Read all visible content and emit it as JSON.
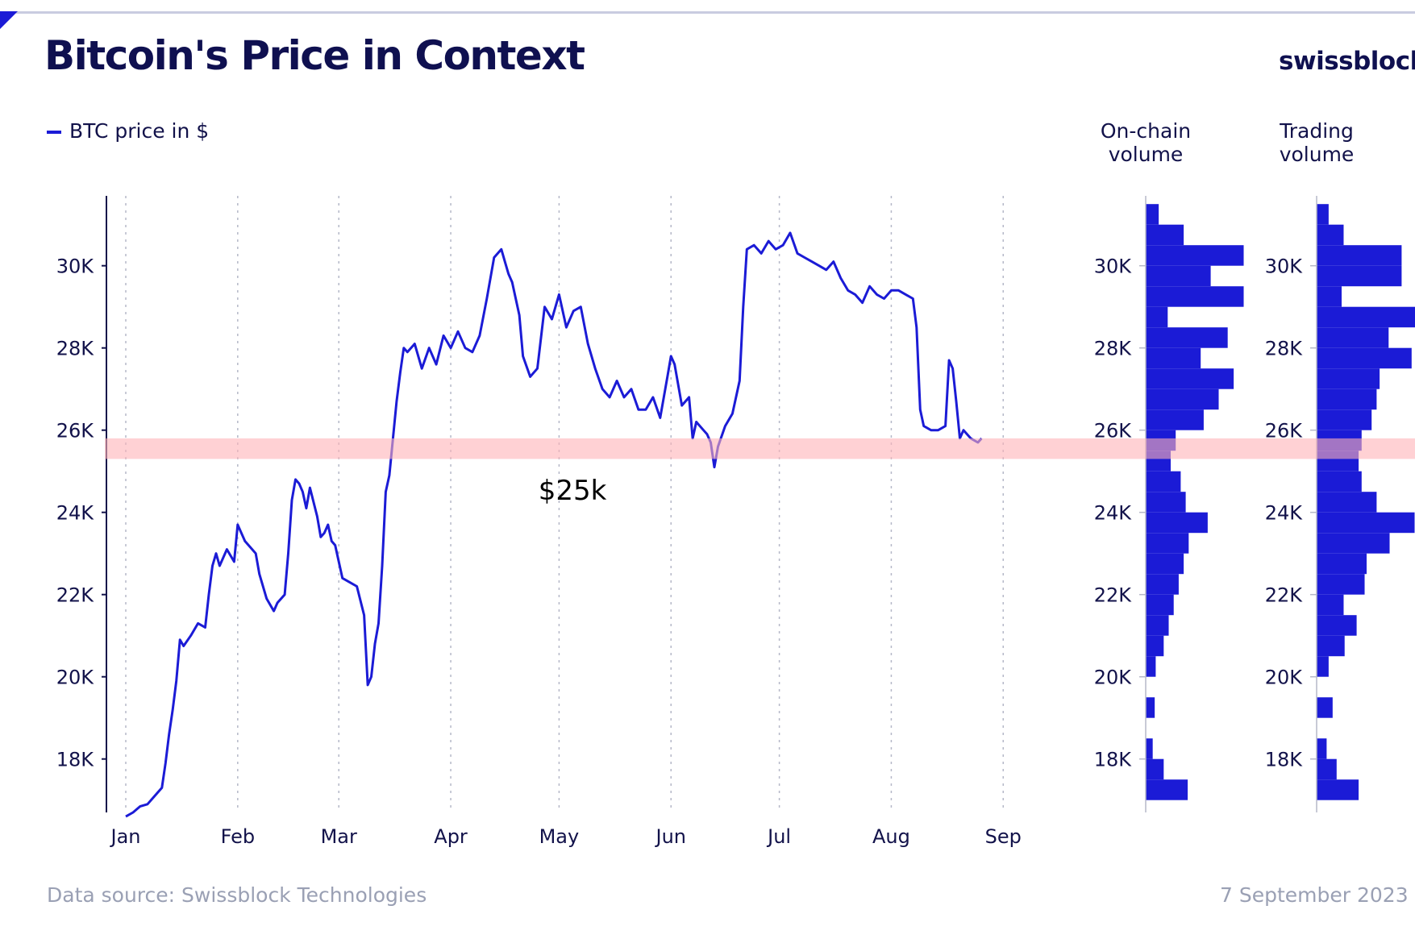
{
  "chart_data": {
    "type": "line",
    "title": "Bitcoin's Price in Context",
    "legend": "BTC price in $",
    "annotation": {
      "label": "$25k",
      "band": [
        25300,
        25800
      ],
      "color": "#ffb3b8"
    },
    "y_axis": {
      "lim": [
        16700,
        31700
      ],
      "ticks": [
        18000,
        20000,
        22000,
        24000,
        26000,
        28000,
        30000
      ],
      "tick_labels": [
        "18K",
        "20K",
        "22K",
        "24K",
        "26K",
        "28K",
        "30K"
      ]
    },
    "x_axis": {
      "day_range": [
        0,
        255
      ],
      "months": [
        "Jan",
        "Feb",
        "Mar",
        "Apr",
        "May",
        "Jun",
        "Jul",
        "Aug",
        "Sep"
      ],
      "month_days": [
        0,
        31,
        59,
        90,
        120,
        151,
        181,
        212,
        243
      ]
    },
    "series": [
      {
        "name": "BTC price in $",
        "color": "#1b1bd6",
        "points": [
          [
            0,
            16600
          ],
          [
            2,
            16700
          ],
          [
            4,
            16850
          ],
          [
            6,
            16900
          ],
          [
            8,
            17100
          ],
          [
            10,
            17300
          ],
          [
            11,
            17900
          ],
          [
            12,
            18600
          ],
          [
            13,
            19200
          ],
          [
            14,
            19900
          ],
          [
            15,
            20900
          ],
          [
            16,
            20750
          ],
          [
            18,
            21000
          ],
          [
            20,
            21300
          ],
          [
            22,
            21200
          ],
          [
            23,
            22000
          ],
          [
            24,
            22700
          ],
          [
            25,
            23000
          ],
          [
            26,
            22700
          ],
          [
            28,
            23100
          ],
          [
            30,
            22800
          ],
          [
            31,
            23700
          ],
          [
            32,
            23500
          ],
          [
            33,
            23300
          ],
          [
            34,
            23200
          ],
          [
            36,
            23000
          ],
          [
            37,
            22500
          ],
          [
            39,
            21900
          ],
          [
            41,
            21600
          ],
          [
            42,
            21800
          ],
          [
            44,
            22000
          ],
          [
            45,
            23000
          ],
          [
            46,
            24300
          ],
          [
            47,
            24800
          ],
          [
            48,
            24700
          ],
          [
            49,
            24500
          ],
          [
            50,
            24100
          ],
          [
            51,
            24600
          ],
          [
            53,
            23900
          ],
          [
            54,
            23400
          ],
          [
            55,
            23500
          ],
          [
            56,
            23700
          ],
          [
            57,
            23300
          ],
          [
            58,
            23200
          ],
          [
            60,
            22400
          ],
          [
            62,
            22300
          ],
          [
            64,
            22200
          ],
          [
            66,
            21500
          ],
          [
            67,
            19800
          ],
          [
            68,
            20000
          ],
          [
            69,
            20800
          ],
          [
            70,
            21300
          ],
          [
            71,
            22700
          ],
          [
            72,
            24500
          ],
          [
            73,
            24900
          ],
          [
            74,
            25800
          ],
          [
            75,
            26700
          ],
          [
            76,
            27400
          ],
          [
            77,
            28000
          ],
          [
            78,
            27900
          ],
          [
            80,
            28100
          ],
          [
            82,
            27500
          ],
          [
            84,
            28000
          ],
          [
            86,
            27600
          ],
          [
            88,
            28300
          ],
          [
            90,
            28000
          ],
          [
            92,
            28400
          ],
          [
            94,
            28000
          ],
          [
            96,
            27900
          ],
          [
            98,
            28300
          ],
          [
            100,
            29200
          ],
          [
            102,
            30200
          ],
          [
            104,
            30400
          ],
          [
            105,
            30100
          ],
          [
            106,
            29800
          ],
          [
            107,
            29600
          ],
          [
            109,
            28800
          ],
          [
            110,
            27800
          ],
          [
            112,
            27300
          ],
          [
            114,
            27500
          ],
          [
            116,
            29000
          ],
          [
            118,
            28700
          ],
          [
            120,
            29300
          ],
          [
            122,
            28500
          ],
          [
            124,
            28900
          ],
          [
            126,
            29000
          ],
          [
            128,
            28100
          ],
          [
            130,
            27500
          ],
          [
            132,
            27000
          ],
          [
            134,
            26800
          ],
          [
            136,
            27200
          ],
          [
            138,
            26800
          ],
          [
            140,
            27000
          ],
          [
            142,
            26500
          ],
          [
            144,
            26500
          ],
          [
            146,
            26800
          ],
          [
            148,
            26300
          ],
          [
            150,
            27300
          ],
          [
            151,
            27800
          ],
          [
            152,
            27600
          ],
          [
            154,
            26600
          ],
          [
            156,
            26800
          ],
          [
            157,
            25800
          ],
          [
            158,
            26200
          ],
          [
            160,
            26000
          ],
          [
            161,
            25900
          ],
          [
            162,
            25700
          ],
          [
            163,
            25100
          ],
          [
            164,
            25600
          ],
          [
            166,
            26100
          ],
          [
            168,
            26400
          ],
          [
            170,
            27200
          ],
          [
            171,
            29000
          ],
          [
            172,
            30400
          ],
          [
            174,
            30500
          ],
          [
            176,
            30300
          ],
          [
            178,
            30600
          ],
          [
            180,
            30400
          ],
          [
            182,
            30500
          ],
          [
            184,
            30800
          ],
          [
            186,
            30300
          ],
          [
            188,
            30200
          ],
          [
            190,
            30100
          ],
          [
            192,
            30000
          ],
          [
            194,
            29900
          ],
          [
            196,
            30100
          ],
          [
            198,
            29700
          ],
          [
            200,
            29400
          ],
          [
            202,
            29300
          ],
          [
            204,
            29100
          ],
          [
            206,
            29500
          ],
          [
            208,
            29300
          ],
          [
            210,
            29200
          ],
          [
            212,
            29400
          ],
          [
            214,
            29400
          ],
          [
            216,
            29300
          ],
          [
            218,
            29200
          ],
          [
            219,
            28500
          ],
          [
            220,
            26500
          ],
          [
            221,
            26100
          ],
          [
            223,
            26000
          ],
          [
            225,
            26000
          ],
          [
            227,
            26100
          ],
          [
            228,
            27700
          ],
          [
            229,
            27500
          ],
          [
            230,
            26700
          ],
          [
            231,
            25800
          ],
          [
            232,
            26000
          ],
          [
            234,
            25800
          ],
          [
            236,
            25700
          ],
          [
            237,
            25800
          ]
        ]
      }
    ],
    "volume_panels": [
      {
        "title": "On-chain\nvolume",
        "bins": [
          17000,
          17500,
          18000,
          18500,
          19000,
          19500,
          20000,
          20500,
          21000,
          21500,
          22000,
          22500,
          23000,
          23500,
          24000,
          24500,
          25000,
          25500,
          26000,
          26500,
          27000,
          27500,
          28000,
          28500,
          29000,
          29500,
          30000,
          30500,
          31000
        ],
        "values": [
          0.42,
          0.18,
          0.07,
          0,
          0.09,
          0,
          0.1,
          0.18,
          0.23,
          0.28,
          0.33,
          0.38,
          0.43,
          0.62,
          0.4,
          0.35,
          0.25,
          0.3,
          0.58,
          0.73,
          0.88,
          0.55,
          0.82,
          0.22,
          0.98,
          0.65,
          0.98,
          0.38,
          0.13
        ]
      },
      {
        "title": "Trading\nvolume",
        "bins": [
          17000,
          17500,
          18000,
          18500,
          19000,
          19500,
          20000,
          20500,
          21000,
          21500,
          22000,
          22500,
          23000,
          23500,
          24000,
          24500,
          25000,
          25500,
          26000,
          26500,
          27000,
          27500,
          28000,
          28500,
          29000,
          29500,
          30000,
          30500,
          31000
        ],
        "values": [
          0.42,
          0.2,
          0.1,
          0,
          0.16,
          0,
          0.12,
          0.28,
          0.4,
          0.27,
          0.48,
          0.5,
          0.73,
          0.98,
          0.6,
          0.45,
          0.42,
          0.45,
          0.55,
          0.6,
          0.63,
          0.95,
          0.72,
          1.0,
          0.25,
          0.85,
          0.85,
          0.27,
          0.12
        ]
      }
    ]
  },
  "brand": "swissblock",
  "footer": {
    "source": "Data source: Swissblock Technologies",
    "date": "7 September 2023"
  }
}
